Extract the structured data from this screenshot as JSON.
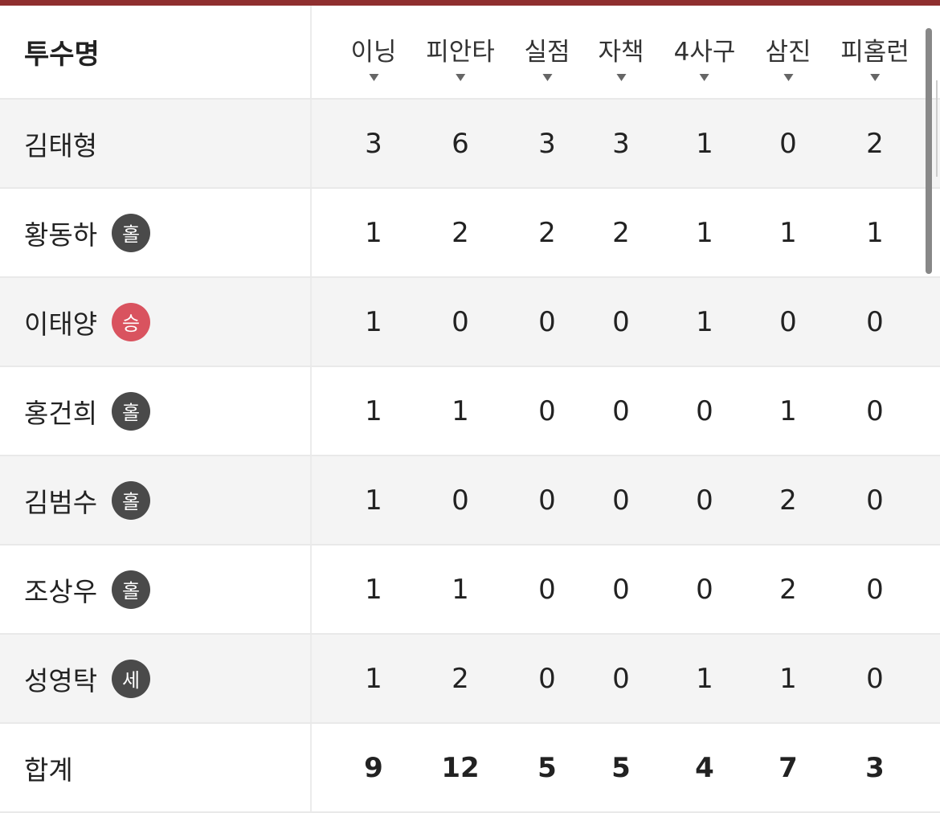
{
  "colors": {
    "accent": "#8f2f2f",
    "badge_dark": "#4a4a4a",
    "badge_win": "#d9535f"
  },
  "header": {
    "name": "투수명",
    "columns": [
      "이닝",
      "피안타",
      "실점",
      "자책",
      "4사구",
      "삼진",
      "피홈런"
    ],
    "sort_icon": "caret-down-icon"
  },
  "rows": [
    {
      "name": "김태형",
      "badge": null,
      "values": [
        "3",
        "6",
        "3",
        "3",
        "1",
        "0",
        "2"
      ]
    },
    {
      "name": "황동하",
      "badge": {
        "text": "홀",
        "type": "dark"
      },
      "values": [
        "1",
        "2",
        "2",
        "2",
        "1",
        "1",
        "1"
      ]
    },
    {
      "name": "이태양",
      "badge": {
        "text": "승",
        "type": "win"
      },
      "values": [
        "1",
        "0",
        "0",
        "0",
        "1",
        "0",
        "0"
      ]
    },
    {
      "name": "홍건희",
      "badge": {
        "text": "홀",
        "type": "dark"
      },
      "values": [
        "1",
        "1",
        "0",
        "0",
        "0",
        "1",
        "0"
      ]
    },
    {
      "name": "김범수",
      "badge": {
        "text": "홀",
        "type": "dark"
      },
      "values": [
        "1",
        "0",
        "0",
        "0",
        "0",
        "2",
        "0"
      ]
    },
    {
      "name": "조상우",
      "badge": {
        "text": "홀",
        "type": "dark"
      },
      "values": [
        "1",
        "1",
        "0",
        "0",
        "0",
        "2",
        "0"
      ]
    },
    {
      "name": "성영탁",
      "badge": {
        "text": "세",
        "type": "dark"
      },
      "values": [
        "1",
        "2",
        "0",
        "0",
        "1",
        "1",
        "0"
      ]
    }
  ],
  "total": {
    "name": "합계",
    "values": [
      "9",
      "12",
      "5",
      "5",
      "4",
      "7",
      "3"
    ]
  }
}
